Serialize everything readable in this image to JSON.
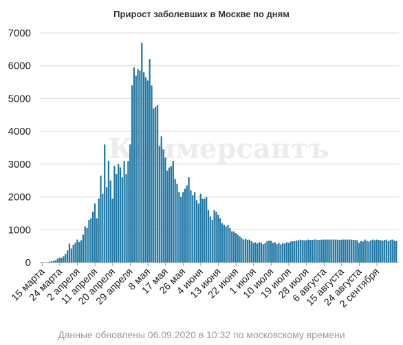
{
  "footnote": "Данные обновлены 06.09.2020 в 10:32 по московскому времени",
  "watermark": "Коммерсантъ",
  "colors": {
    "bar": "#1f77a4",
    "bar_edge": "#ffffff",
    "grid": "#d9d9d9"
  },
  "chart_data": {
    "type": "bar",
    "title": "Прирост заболевших в Москве по дням",
    "xlabel": "",
    "ylabel": "",
    "ylim": [
      0,
      7000
    ],
    "yticks": [
      0,
      1000,
      2000,
      3000,
      4000,
      5000,
      6000,
      7000
    ],
    "ytick_labels": [
      "0",
      "1000",
      "2000",
      "3000",
      "4000",
      "5000",
      "6000",
      "7000"
    ],
    "grid": true,
    "legend": "none",
    "start_date": "2020-03-15",
    "xtick_labels": [
      "15 марта",
      "24 марта",
      "2 апреля",
      "11 апреля",
      "20 апреля",
      "29 апреля",
      "8 мая",
      "17 мая",
      "26 мая",
      "4 июня",
      "13 июня",
      "22 июня",
      "1 июля",
      "10 июля",
      "19 июля",
      "28 июля",
      "6 августа",
      "15 августа",
      "24 августа",
      "2 сентября"
    ],
    "xtick_every": 9,
    "values": [
      13,
      5,
      10,
      20,
      30,
      40,
      55,
      70,
      120,
      150,
      140,
      190,
      260,
      370,
      580,
      430,
      540,
      600,
      700,
      630,
      680,
      850,
      1100,
      1050,
      1300,
      1350,
      1550,
      1800,
      1350,
      1950,
      2650,
      2100,
      3600,
      2300,
      3100,
      2500,
      1950,
      2950,
      2700,
      3000,
      2900,
      2600,
      3100,
      2700,
      3100,
      3600,
      5400,
      5950,
      5700,
      5900,
      5850,
      6700,
      5800,
      5650,
      5550,
      6200,
      5400,
      4700,
      4750,
      4800,
      3550,
      3850,
      3450,
      3200,
      2800,
      2900,
      2950,
      3100,
      2550,
      2400,
      2150,
      2000,
      2150,
      2250,
      2350,
      2600,
      2200,
      2050,
      2150,
      1900,
      1800,
      2100,
      1950,
      1950,
      2000,
      1600,
      1400,
      1300,
      1600,
      1550,
      1450,
      1350,
      1200,
      1150,
      1100,
      1150,
      1050,
      950,
      950,
      900,
      850,
      800,
      750,
      700,
      720,
      690,
      700,
      650,
      600,
      620,
      580,
      620,
      600,
      560,
      590,
      650,
      670,
      660,
      600,
      620,
      560,
      590,
      550,
      590,
      580,
      620,
      600,
      640,
      650,
      650,
      670,
      680,
      700,
      690,
      680,
      680,
      700,
      690,
      690,
      700,
      700,
      690,
      690,
      700,
      700,
      700,
      700,
      700,
      700,
      700,
      700,
      700,
      690,
      700,
      700,
      700,
      700,
      700,
      700,
      690,
      690,
      680,
      600,
      650,
      640,
      700,
      660,
      640,
      680,
      700,
      680,
      700,
      690,
      680,
      670,
      690,
      700,
      650,
      690,
      700,
      670,
      650
    ]
  }
}
